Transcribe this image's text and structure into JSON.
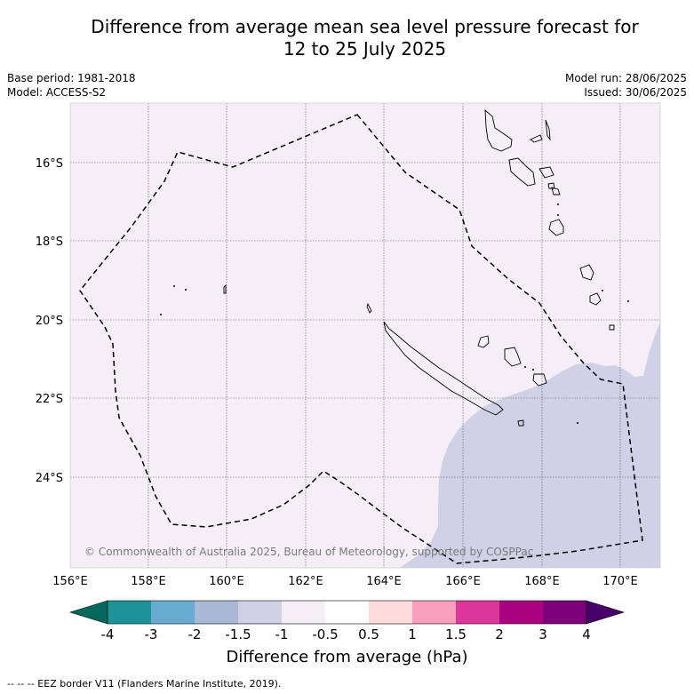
{
  "title_line1": "Difference from average mean sea level pressure forecast for",
  "title_line2": "12 to 25 July 2025",
  "base_period": "Base period: 1981-2018",
  "model": "Model: ACCESS-S2",
  "model_run": "Model run: 28/06/2025",
  "issued": "Issued: 30/06/2025",
  "credit": "© Commonwealth of Australia 2025, Bureau of Meteorology, supported by COSPPac",
  "lon_ticks": [
    "156°E",
    "158°E",
    "160°E",
    "162°E",
    "164°E",
    "166°E",
    "168°E",
    "170°E"
  ],
  "lat_ticks": [
    "16°S",
    "18°S",
    "20°S",
    "22°S",
    "24°S"
  ],
  "colorbar": {
    "title": "Difference from average (hPa)",
    "labels": [
      "-4",
      "-3",
      "-2",
      "-1.5",
      "-1",
      "-0.5",
      "0.5",
      "1",
      "1.5",
      "2",
      "3",
      "4"
    ],
    "colors": [
      "#05685d",
      "#1c9398",
      "#69aad0",
      "#a9b9d5",
      "#d0d0e6",
      "#f5eef7",
      "#ffffff",
      "#ffdcdc",
      "#f89fbe",
      "#dd369a",
      "#ab027f",
      "#7c0079",
      "#48006a"
    ]
  },
  "footnote": "-- -- -- EEZ border V11 (Flanders Marine Institute, 2019)."
}
